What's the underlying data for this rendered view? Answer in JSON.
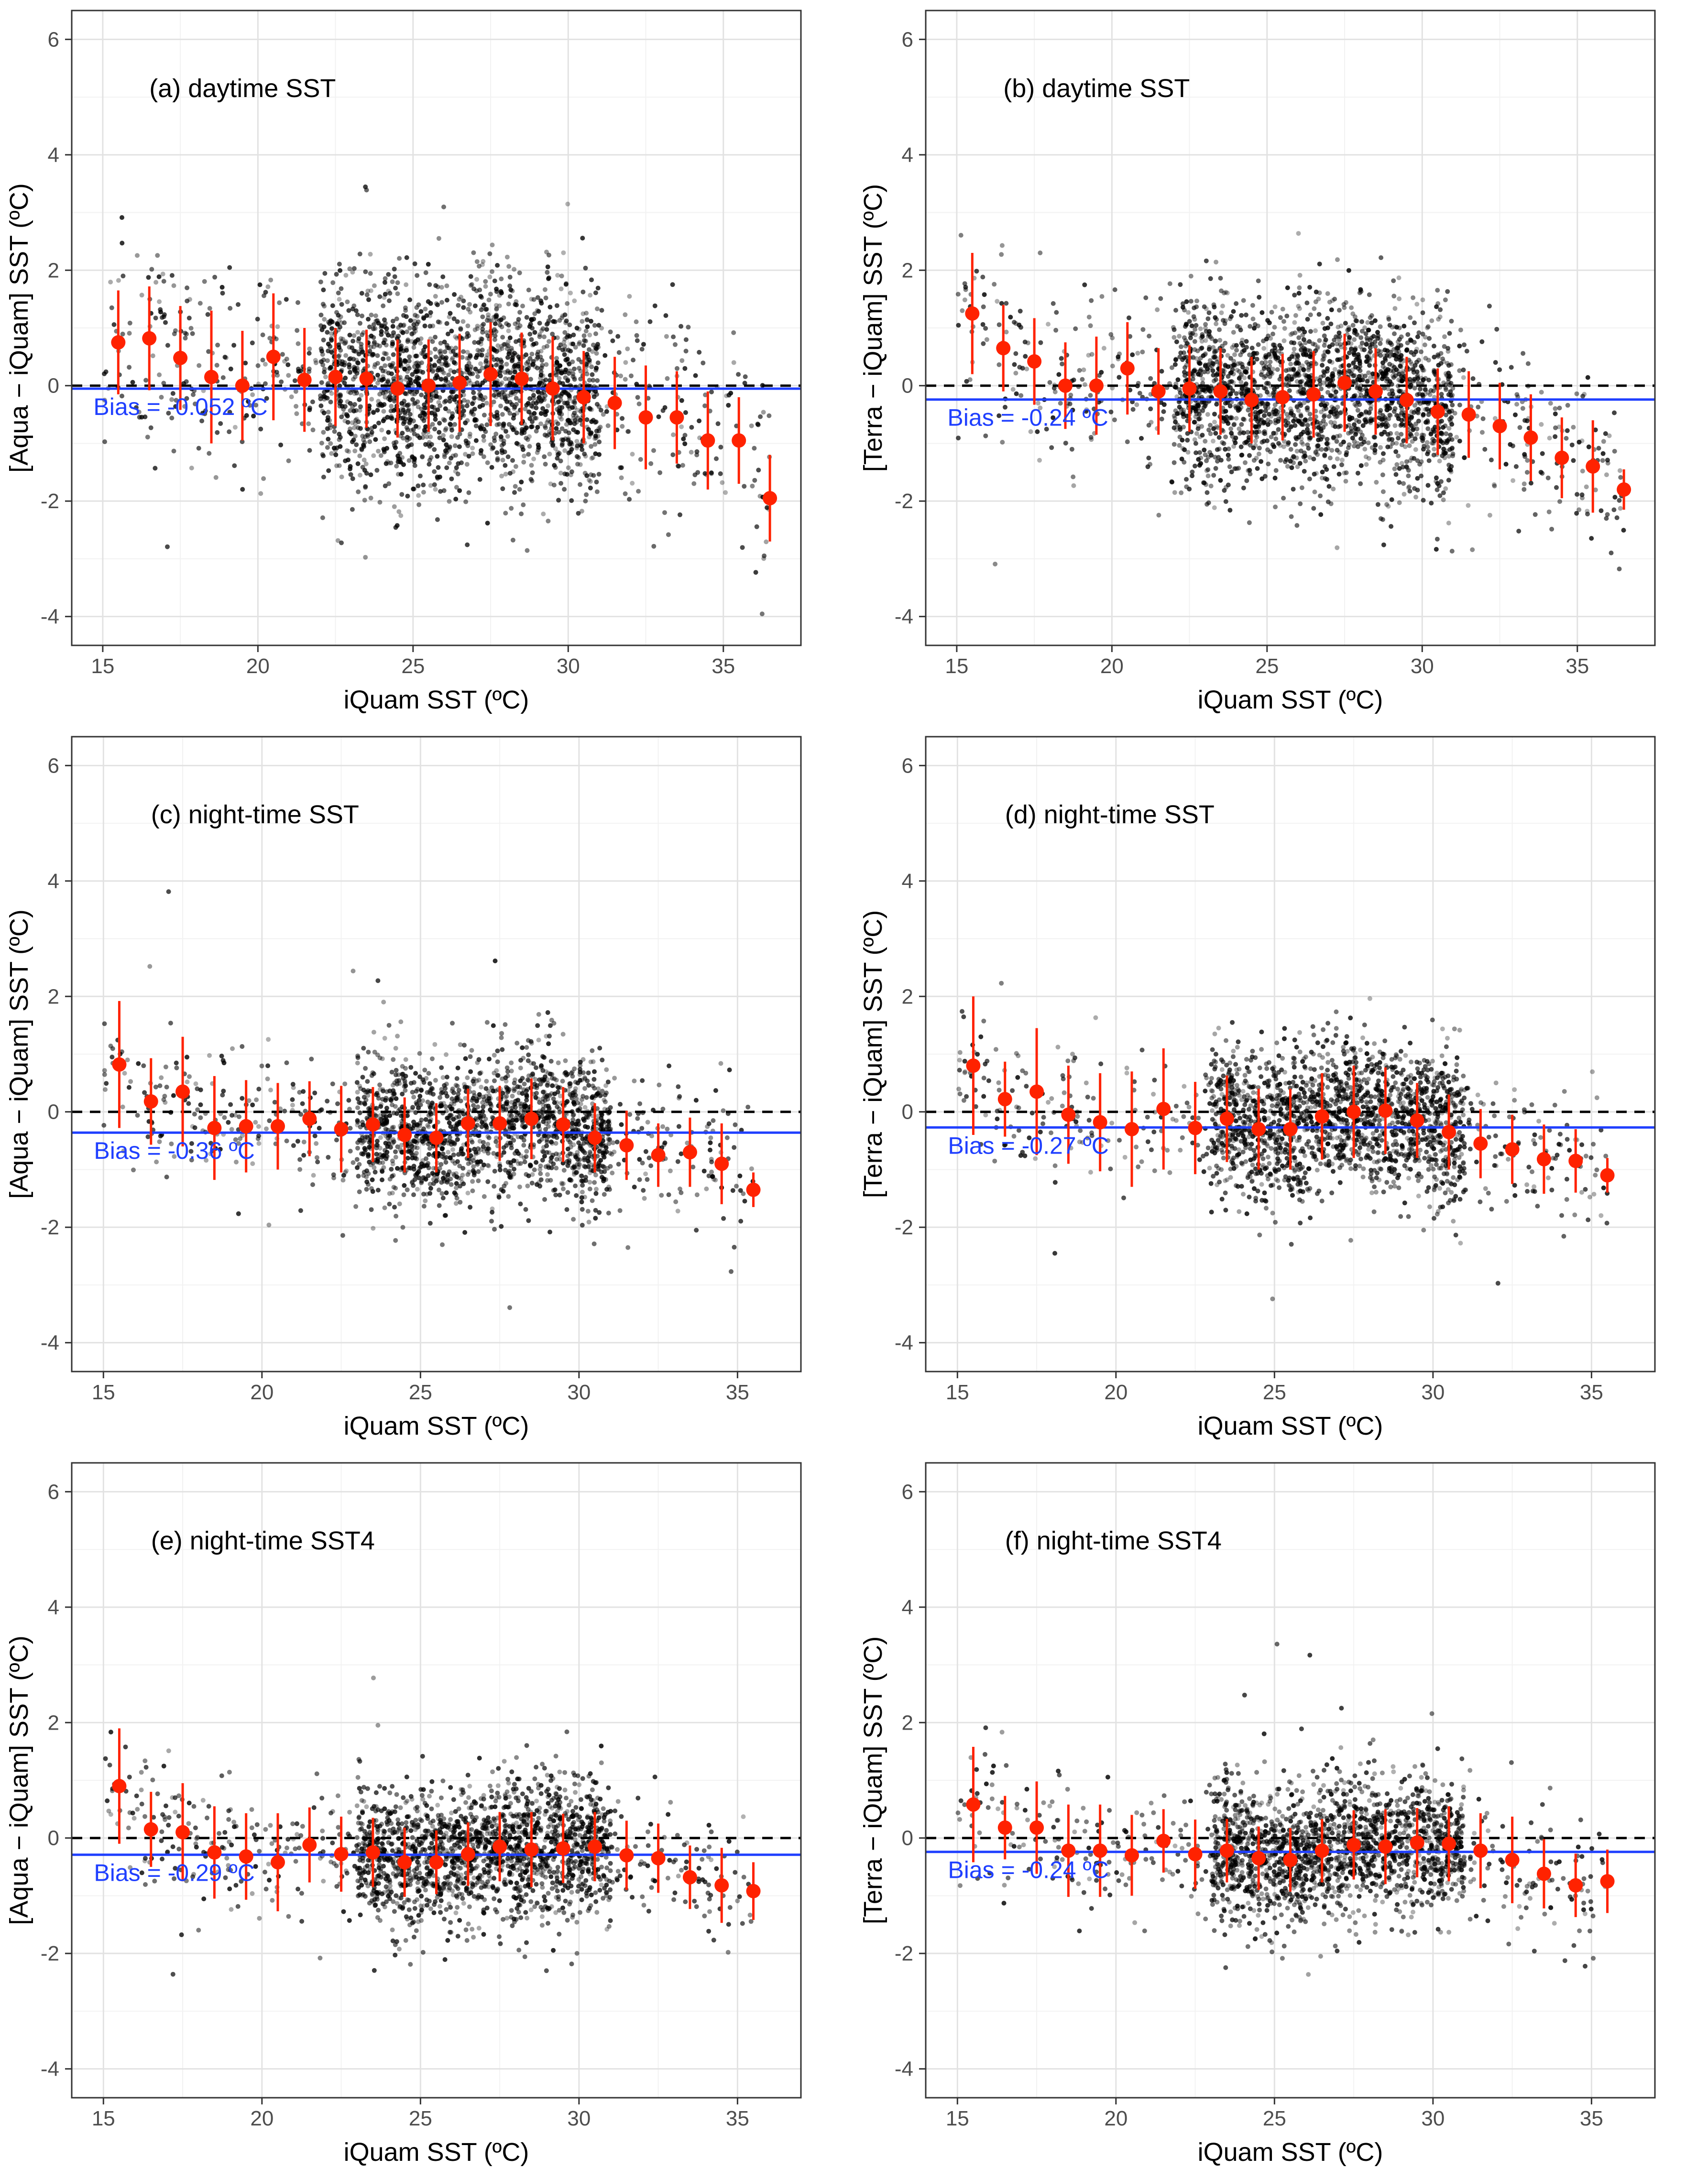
{
  "colors": {
    "points": "#000000",
    "bin_mean": "#ff2200",
    "bias_line": "#1f3fff",
    "zero_line": "#000000",
    "grid_major": "#e2e2e2",
    "grid_minor": "#f2f2f2",
    "panel_border": "#333333"
  },
  "chart_data": [
    {
      "type": "scatter",
      "title": "(a) daytime SST",
      "xlabel": "iQuam SST (ºC)",
      "ylabel": "[Aqua − iQuam] SST (ºC)",
      "xlim": [
        14,
        37.5
      ],
      "ylim": [
        -4.5,
        6.5
      ],
      "xticks": [
        15,
        20,
        25,
        30,
        35
      ],
      "yticks": [
        -4,
        -2,
        0,
        2,
        4,
        6
      ],
      "zero_line": 0,
      "bias": -0.052,
      "bias_label": "Bias = -0.052 ºC",
      "scatter_density": {
        "x_range": [
          15,
          36.5
        ],
        "core_range": [
          22,
          31
        ],
        "sd": 0.9,
        "n": 2400
      },
      "bins": {
        "x": [
          15.5,
          16.5,
          17.5,
          18.5,
          19.5,
          20.5,
          21.5,
          22.5,
          23.5,
          24.5,
          25.5,
          26.5,
          27.5,
          28.5,
          29.5,
          30.5,
          31.5,
          32.5,
          33.5,
          34.5,
          35.5,
          36.5
        ],
        "mean": [
          0.75,
          0.82,
          0.48,
          0.15,
          0.0,
          0.5,
          0.1,
          0.15,
          0.12,
          -0.05,
          0.0,
          0.05,
          0.2,
          0.12,
          -0.05,
          -0.2,
          -0.3,
          -0.55,
          -0.55,
          -0.95,
          -0.95,
          -1.95
        ],
        "sd": [
          0.9,
          0.9,
          0.9,
          1.15,
          0.95,
          1.1,
          0.9,
          0.85,
          0.85,
          0.85,
          0.8,
          0.85,
          0.9,
          0.8,
          0.9,
          0.8,
          0.8,
          0.9,
          0.8,
          0.85,
          0.75,
          0.75
        ]
      }
    },
    {
      "type": "scatter",
      "title": "(b) daytime SST",
      "xlabel": "iQuam SST (ºC)",
      "ylabel": "[Terra − iQuam] SST (ºC)",
      "xlim": [
        14,
        37.5
      ],
      "ylim": [
        -4.5,
        6.5
      ],
      "xticks": [
        15,
        20,
        25,
        30,
        35
      ],
      "yticks": [
        -4,
        -2,
        0,
        2,
        4,
        6
      ],
      "zero_line": 0,
      "bias": -0.24,
      "bias_label": "Bias = -0.24 ºC",
      "scatter_density": {
        "x_range": [
          15,
          36.5
        ],
        "core_range": [
          22,
          31
        ],
        "sd": 0.8,
        "n": 2400
      },
      "bins": {
        "x": [
          15.5,
          16.5,
          17.5,
          18.5,
          19.5,
          20.5,
          21.5,
          22.5,
          23.5,
          24.5,
          25.5,
          26.5,
          27.5,
          28.5,
          29.5,
          30.5,
          31.5,
          32.5,
          33.5,
          34.5,
          35.5,
          36.5
        ],
        "mean": [
          1.25,
          0.65,
          0.42,
          0.0,
          0.0,
          0.3,
          -0.1,
          -0.05,
          -0.1,
          -0.25,
          -0.2,
          -0.15,
          0.05,
          -0.1,
          -0.25,
          -0.45,
          -0.5,
          -0.7,
          -0.9,
          -1.25,
          -1.4,
          -1.8
        ],
        "sd": [
          1.05,
          0.75,
          0.75,
          0.75,
          0.85,
          0.8,
          0.75,
          0.75,
          0.75,
          0.75,
          0.75,
          0.75,
          0.85,
          0.75,
          0.75,
          0.75,
          0.75,
          0.75,
          0.75,
          0.7,
          0.8,
          0.35
        ]
      }
    },
    {
      "type": "scatter",
      "title": "(c) night-time SST",
      "xlabel": "iQuam SST (ºC)",
      "ylabel": "[Aqua − iQuam] SST (ºC)",
      "xlim": [
        14,
        37
      ],
      "ylim": [
        -4.5,
        6.5
      ],
      "xticks": [
        15,
        20,
        25,
        30,
        35
      ],
      "yticks": [
        -4,
        -2,
        0,
        2,
        4,
        6
      ],
      "zero_line": 0,
      "bias": -0.36,
      "bias_label": "Bias = -0.36 ºC",
      "scatter_density": {
        "x_range": [
          15,
          35.5
        ],
        "core_range": [
          23,
          31
        ],
        "sd": 0.65,
        "n": 2000
      },
      "bins": {
        "x": [
          15.5,
          16.5,
          17.5,
          18.5,
          19.5,
          20.5,
          21.5,
          22.5,
          23.5,
          24.5,
          25.5,
          26.5,
          27.5,
          28.5,
          29.5,
          30.5,
          31.5,
          32.5,
          33.5,
          34.5,
          35.5
        ],
        "mean": [
          0.82,
          0.18,
          0.35,
          -0.28,
          -0.25,
          -0.25,
          -0.12,
          -0.3,
          -0.22,
          -0.4,
          -0.45,
          -0.2,
          -0.2,
          -0.12,
          -0.22,
          -0.45,
          -0.58,
          -0.75,
          -0.7,
          -0.9,
          -1.35
        ],
        "sd": [
          1.1,
          0.75,
          0.95,
          0.9,
          0.8,
          0.75,
          0.65,
          0.75,
          0.65,
          0.65,
          0.6,
          0.6,
          0.65,
          0.7,
          0.65,
          0.6,
          0.6,
          0.55,
          0.6,
          0.7,
          0.3
        ]
      }
    },
    {
      "type": "scatter",
      "title": "(d) night-time SST",
      "xlabel": "iQuam SST (ºC)",
      "ylabel": "[Terra − iQuam] SST (ºC)",
      "xlim": [
        14,
        37
      ],
      "ylim": [
        -4.5,
        6.5
      ],
      "xticks": [
        15,
        20,
        25,
        30,
        35
      ],
      "yticks": [
        -4,
        -2,
        0,
        2,
        4,
        6
      ],
      "zero_line": 0,
      "bias": -0.27,
      "bias_label": "Bias = -0.27 ºC",
      "scatter_density": {
        "x_range": [
          15,
          35.5
        ],
        "core_range": [
          23,
          31
        ],
        "sd": 0.65,
        "n": 2000
      },
      "bins": {
        "x": [
          15.5,
          16.5,
          17.5,
          18.5,
          19.5,
          20.5,
          21.5,
          22.5,
          23.5,
          24.5,
          25.5,
          26.5,
          27.5,
          28.5,
          29.5,
          30.5,
          31.5,
          32.5,
          33.5,
          34.5,
          35.5
        ],
        "mean": [
          0.8,
          0.22,
          0.35,
          -0.05,
          -0.18,
          -0.3,
          0.05,
          -0.28,
          -0.12,
          -0.3,
          -0.3,
          -0.08,
          0.0,
          0.02,
          -0.15,
          -0.35,
          -0.55,
          -0.65,
          -0.82,
          -0.85,
          -1.1
        ],
        "sd": [
          1.2,
          0.65,
          1.1,
          0.85,
          0.85,
          1.0,
          1.05,
          0.8,
          0.75,
          0.7,
          0.7,
          0.75,
          0.8,
          0.75,
          0.65,
          0.65,
          0.6,
          0.6,
          0.6,
          0.55,
          0.3
        ]
      }
    },
    {
      "type": "scatter",
      "title": "(e) night-time SST4",
      "xlabel": "iQuam SST (ºC)",
      "ylabel": "[Aqua − iQuam] SST (ºC)",
      "xlim": [
        14,
        37
      ],
      "ylim": [
        -4.5,
        6.5
      ],
      "xticks": [
        15,
        20,
        25,
        30,
        35
      ],
      "yticks": [
        -4,
        -2,
        0,
        2,
        4,
        6
      ],
      "zero_line": 0,
      "bias": -0.29,
      "bias_label": "Bias = -0.29 ºC",
      "scatter_density": {
        "x_range": [
          15,
          35.5
        ],
        "core_range": [
          23,
          31
        ],
        "sd": 0.6,
        "n": 2000
      },
      "bins": {
        "x": [
          15.5,
          16.5,
          17.5,
          18.5,
          19.5,
          20.5,
          21.5,
          22.5,
          23.5,
          24.5,
          25.5,
          26.5,
          27.5,
          28.5,
          29.5,
          30.5,
          31.5,
          32.5,
          33.5,
          34.5,
          35.5
        ],
        "mean": [
          0.9,
          0.15,
          0.1,
          -0.25,
          -0.32,
          -0.42,
          -0.12,
          -0.28,
          -0.25,
          -0.42,
          -0.42,
          -0.28,
          -0.15,
          -0.2,
          -0.18,
          -0.15,
          -0.3,
          -0.35,
          -0.68,
          -0.82,
          -0.92
        ],
        "sd": [
          1.0,
          0.65,
          0.85,
          0.8,
          0.75,
          0.85,
          0.65,
          0.65,
          0.6,
          0.6,
          0.55,
          0.55,
          0.6,
          0.65,
          0.6,
          0.6,
          0.6,
          0.6,
          0.55,
          0.65,
          0.5
        ]
      }
    },
    {
      "type": "scatter",
      "title": "(f) night-time SST4",
      "xlabel": "iQuam SST (ºC)",
      "ylabel": "[Terra − iQuam] SST (ºC)",
      "xlim": [
        14,
        37
      ],
      "ylim": [
        -4.5,
        6.5
      ],
      "xticks": [
        15,
        20,
        25,
        30,
        35
      ],
      "yticks": [
        -4,
        -2,
        0,
        2,
        4,
        6
      ],
      "zero_line": 0,
      "bias": -0.24,
      "bias_label": "Bias = -0.24 ºC",
      "scatter_density": {
        "x_range": [
          15,
          35.5
        ],
        "core_range": [
          23,
          31
        ],
        "sd": 0.6,
        "n": 2000
      },
      "bins": {
        "x": [
          15.5,
          16.5,
          17.5,
          18.5,
          19.5,
          20.5,
          21.5,
          22.5,
          23.5,
          24.5,
          25.5,
          26.5,
          27.5,
          28.5,
          29.5,
          30.5,
          31.5,
          32.5,
          33.5,
          34.5,
          35.5
        ],
        "mean": [
          0.58,
          0.18,
          0.18,
          -0.22,
          -0.22,
          -0.3,
          -0.05,
          -0.28,
          -0.22,
          -0.35,
          -0.38,
          -0.22,
          -0.12,
          -0.15,
          -0.08,
          -0.1,
          -0.22,
          -0.38,
          -0.62,
          -0.82,
          -0.75
        ],
        "sd": [
          1.0,
          0.55,
          0.8,
          0.8,
          0.8,
          0.7,
          0.55,
          0.6,
          0.55,
          0.55,
          0.55,
          0.55,
          0.6,
          0.65,
          0.6,
          0.65,
          0.65,
          0.75,
          0.6,
          0.55,
          0.55
        ]
      }
    }
  ]
}
